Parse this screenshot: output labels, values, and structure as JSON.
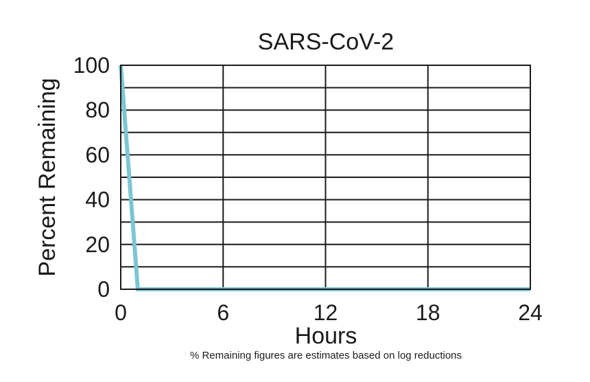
{
  "chart_data": {
    "type": "line",
    "title": "SARS-CoV-2",
    "xlabel": "Hours",
    "ylabel": "Percent Remaining",
    "note": "% Remaining figures are estimates based on log reductions",
    "xlim": [
      0,
      24
    ],
    "ylim": [
      0,
      100
    ],
    "x_ticks": [
      0,
      6,
      12,
      18,
      24
    ],
    "y_ticks": [
      0,
      20,
      40,
      60,
      80,
      100
    ],
    "grid": true,
    "series": [
      {
        "color": "#7cc6d4",
        "x": [
          0,
          1,
          24
        ],
        "y": [
          100,
          0,
          0
        ]
      }
    ]
  }
}
